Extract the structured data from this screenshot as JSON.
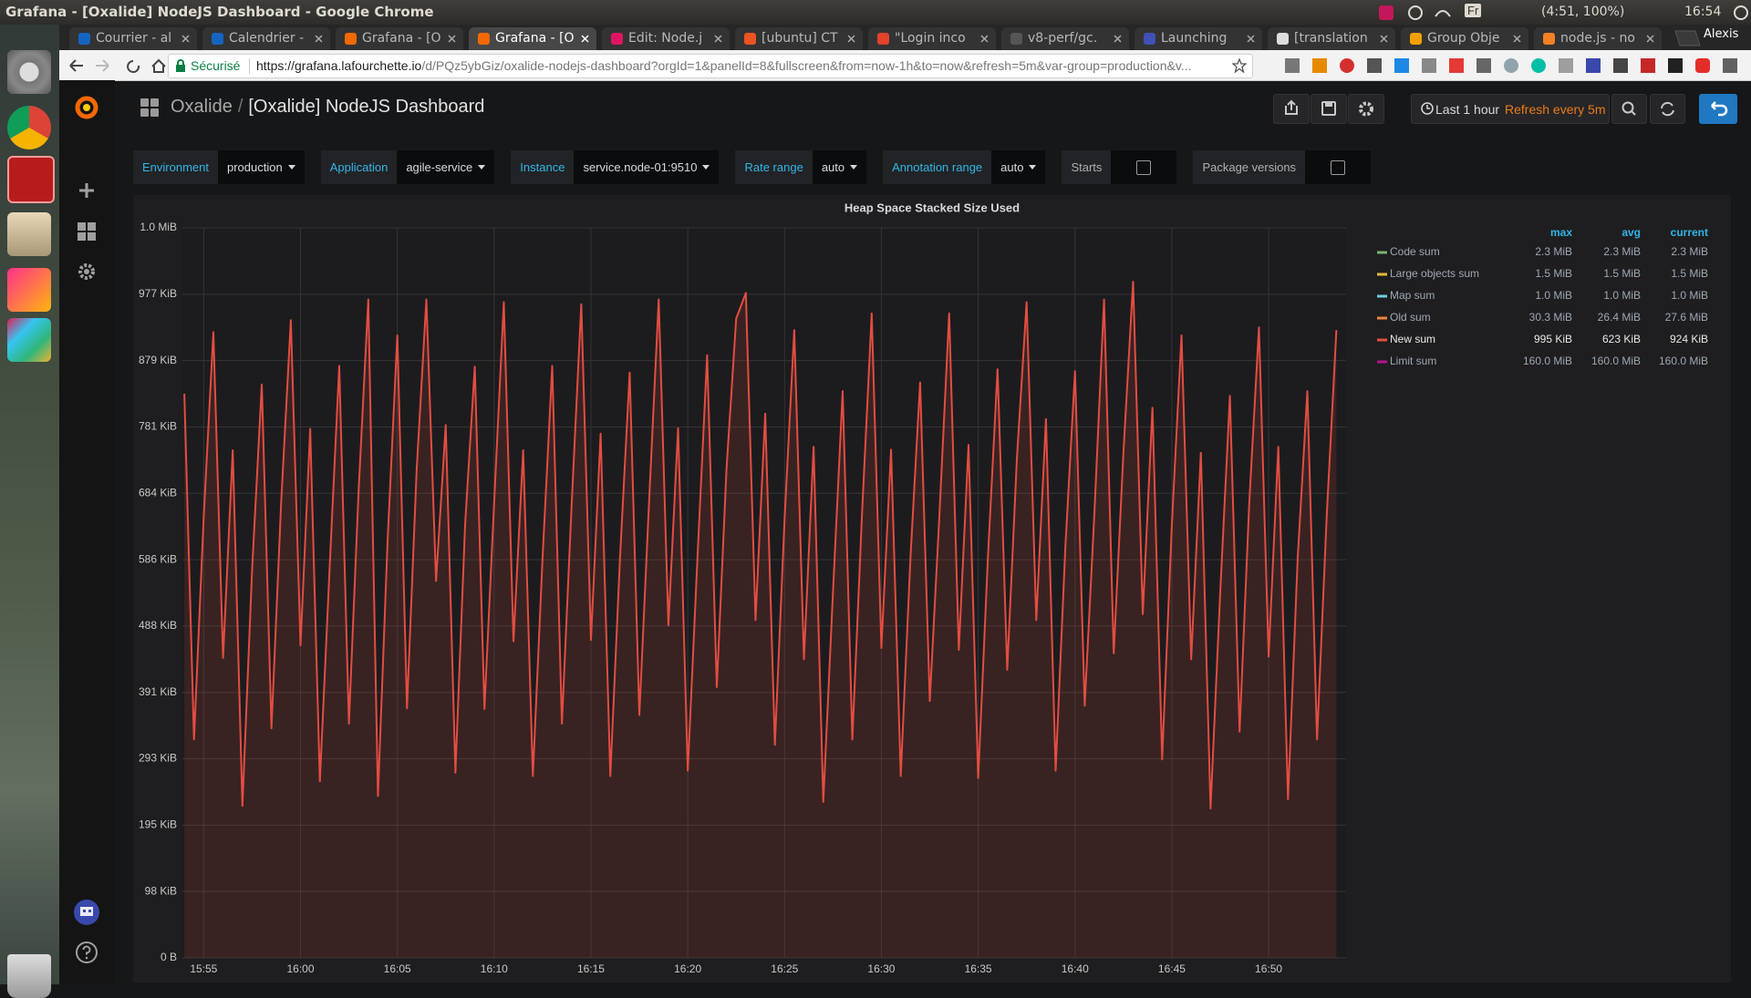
{
  "window": {
    "title": "Grafana - [Oxalide] NodeJS Dashboard - Google Chrome",
    "keyboard": "Fr",
    "battery": "(4:51, 100%)",
    "clock": "16:54"
  },
  "browser": {
    "tabs": [
      {
        "title": "Courrier - al",
        "icon": "#1565c0"
      },
      {
        "title": "Calendrier -",
        "icon": "#1565c0"
      },
      {
        "title": "Grafana - [O",
        "icon": "#f46800"
      },
      {
        "title": "Grafana - [O",
        "icon": "#f46800",
        "active": true
      },
      {
        "title": "Edit: Node.j",
        "icon": "#e01563"
      },
      {
        "title": "[ubuntu] CT",
        "icon": "#e95420"
      },
      {
        "title": "\"Login inco",
        "icon": "#e24329"
      },
      {
        "title": "v8-perf/gc.",
        "icon": "#555555"
      },
      {
        "title": "Launching",
        "icon": "#3f51b5"
      },
      {
        "title": "[translation",
        "icon": "#dddddd"
      },
      {
        "title": "Group Obje",
        "icon": "#f4a000"
      },
      {
        "title": "node.js - no",
        "icon": "#f48024"
      }
    ],
    "user": "Alexis",
    "security": "Sécurisé",
    "url_host": "https://grafana.lafourchette.io",
    "url_path": "/d/PQz5ybGiz/oxalide-nodejs-dashboard?orgId=1&panelId=8&fullscreen&from=now-1h&to=now&refresh=5m&var-group=production&v..."
  },
  "dashboard": {
    "folder": "Oxalide",
    "separator": "/",
    "title": "[Oxalide] NodeJS Dashboard",
    "time_range": "Last 1 hour",
    "refresh": "Refresh every 5m",
    "variables": [
      {
        "label": "Environment",
        "value": "production"
      },
      {
        "label": "Application",
        "value": "agile-service"
      },
      {
        "label": "Instance",
        "value": "service.node-01:9510"
      },
      {
        "label": "Rate range",
        "value": "auto"
      },
      {
        "label": "Annotation range",
        "value": "auto"
      }
    ],
    "toggles": [
      {
        "label": "Starts"
      },
      {
        "label": "Package versions"
      }
    ]
  },
  "panel": {
    "type": "line",
    "title": "Heap Space Stacked Size Used",
    "grid": true,
    "fill": true,
    "legend": {
      "position": "right",
      "columns": [
        "max",
        "avg",
        "current"
      ]
    },
    "xlim": [
      953.9,
      1014
    ],
    "xticks": [
      {
        "value": 955,
        "label": "15:55"
      },
      {
        "value": 960,
        "label": "16:00"
      },
      {
        "value": 965,
        "label": "16:05"
      },
      {
        "value": 970,
        "label": "16:10"
      },
      {
        "value": 975,
        "label": "16:15"
      },
      {
        "value": 980,
        "label": "16:20"
      },
      {
        "value": 985,
        "label": "16:25"
      },
      {
        "value": 990,
        "label": "16:30"
      },
      {
        "value": 995,
        "label": "16:35"
      },
      {
        "value": 1000,
        "label": "16:40"
      },
      {
        "value": 1005,
        "label": "16:45"
      },
      {
        "value": 1010,
        "label": "16:50"
      }
    ],
    "ylim": [
      0,
      1100000
    ],
    "yticks": [
      {
        "value": 0,
        "label": "0 B"
      },
      {
        "value": 100000,
        "label": "98 KiB"
      },
      {
        "value": 200000,
        "label": "195 KiB"
      },
      {
        "value": 300000,
        "label": "293 KiB"
      },
      {
        "value": 400000,
        "label": "391 KiB"
      },
      {
        "value": 500000,
        "label": "488 KiB"
      },
      {
        "value": 600000,
        "label": "586 KiB"
      },
      {
        "value": 700000,
        "label": "684 KiB"
      },
      {
        "value": 800000,
        "label": "781 KiB"
      },
      {
        "value": 900000,
        "label": "879 KiB"
      },
      {
        "value": 1000000,
        "label": "977 KiB"
      },
      {
        "value": 1100000,
        "label": "1.0 MiB"
      }
    ],
    "x": [
      954,
      954.5,
      955,
      955.5,
      956,
      956.5,
      957,
      957.5,
      958,
      958.5,
      959,
      959.5,
      960,
      960.5,
      961,
      961.5,
      962,
      962.5,
      963,
      963.5,
      964,
      964.5,
      965,
      965.5,
      966,
      966.5,
      967,
      967.5,
      968,
      968.5,
      969,
      969.5,
      970,
      970.5,
      971,
      971.5,
      972,
      972.5,
      973,
      973.5,
      974,
      974.5,
      975,
      975.5,
      976,
      976.5,
      977,
      977.5,
      978,
      978.5,
      979,
      979.5,
      980,
      980.5,
      981,
      981.5,
      982,
      982.5,
      983,
      983.5,
      984,
      984.5,
      985,
      985.5,
      986,
      986.5,
      987,
      987.5,
      988,
      988.5,
      989,
      989.5,
      990,
      990.5,
      991,
      991.5,
      992,
      992.5,
      993,
      993.5,
      994,
      994.5,
      995,
      995.5,
      996,
      996.5,
      997,
      997.5,
      998,
      998.5,
      999,
      999.5,
      1000,
      1000.5,
      1001,
      1001.5,
      1002,
      1002.5,
      1003,
      1003.5,
      1004,
      1004.5,
      1005,
      1005.5,
      1006,
      1006.5,
      1007,
      1007.5,
      1008,
      1008.5,
      1009,
      1009.5,
      1010,
      1010.5,
      1011,
      1011.5,
      1012,
      1012.5,
      1013,
      1013.5
    ],
    "series": [
      {
        "name": "Code sum",
        "color": "#7eb26d",
        "max": "2.3 MiB",
        "avg": "2.3 MiB",
        "current": "2.3 MiB"
      },
      {
        "name": "Large objects sum",
        "color": "#eab839",
        "max": "1.5 MiB",
        "avg": "1.5 MiB",
        "current": "1.5 MiB"
      },
      {
        "name": "Map sum",
        "color": "#6ed0e0",
        "max": "1.0 MiB",
        "avg": "1.0 MiB",
        "current": "1.0 MiB"
      },
      {
        "name": "Old sum",
        "color": "#ef843c",
        "max": "30.3 MiB",
        "avg": "26.4 MiB",
        "current": "27.6 MiB"
      },
      {
        "name": "New sum",
        "color": "#e24d42",
        "max": "995 KiB",
        "avg": "623 KiB",
        "current": "924 KiB",
        "values": [
          850000,
          329000,
          664000,
          943000,
          452000,
          765000,
          229000,
          585000,
          864000,
          346000,
          686000,
          961000,
          471000,
          797000,
          266000,
          585000,
          892000,
          353000,
          703000,
          992000,
          244000,
          630000,
          938000,
          376000,
          736000,
          992000,
          568000,
          803000,
          279000,
          652000,
          891000,
          375000,
          686000,
          988000,
          477000,
          765000,
          274000,
          602000,
          892000,
          353000,
          681000,
          985000,
          479000,
          790000,
          274000,
          602000,
          882000,
          366000,
          686000,
          992000,
          501000,
          798000,
          282000,
          602000,
          908000,
          408000,
          736000,
          963000,
          1002000,
          509000,
          820000,
          321000,
          661000,
          946000,
          450000,
          770000,
          235000,
          551000,
          854000,
          329000,
          669000,
          971000,
          467000,
          766000,
          274000,
          602000,
          867000,
          387000,
          669000,
          971000,
          464000,
          773000,
          271000,
          602000,
          887000,
          434000,
          753000,
          988000,
          509000,
          812000,
          282000,
          618000,
          884000,
          380000,
          669000,
          992000,
          459000,
          761000,
          1019000,
          518000,
          829000,
          299000,
          652000,
          938000,
          450000,
          761000,
          225000,
          551000,
          847000,
          341000,
          686000,
          950000,
          454000,
          770000,
          239000,
          602000,
          854000,
          329000,
          666000,
          946000
        ]
      },
      {
        "name": "Limit sum",
        "color": "#b5128c",
        "max": "160.0 MiB",
        "avg": "160.0 MiB",
        "current": "160.0 MiB"
      }
    ]
  }
}
